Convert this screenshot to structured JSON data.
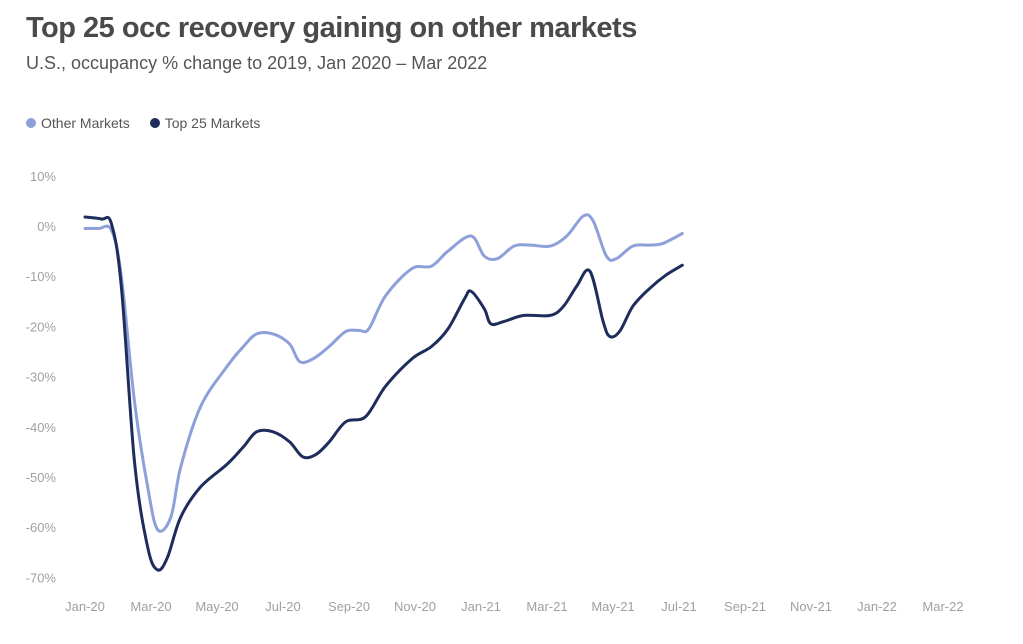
{
  "title": "Top 25 occ recovery gaining on other markets",
  "subtitle": "U.S., occupancy % change to 2019, Jan 2020 – Mar 2022",
  "chart_data": {
    "type": "line",
    "title": "Top 25 occ recovery gaining on other markets",
    "subtitle": "U.S., occupancy % change to 2019, Jan 2020 – Mar 2022",
    "xlabel": "",
    "ylabel": "",
    "ylim": [
      -70,
      10
    ],
    "yticks": [
      10,
      0,
      -10,
      -20,
      -30,
      -40,
      -50,
      -60,
      -70
    ],
    "ytick_labels": [
      "10%",
      "0%",
      "-10%",
      "-20%",
      "-30%",
      "-40%",
      "-50%",
      "-60%",
      "-70%"
    ],
    "x_tick_labels": [
      "Jan-20",
      "Mar-20",
      "May-20",
      "Jul-20",
      "Sep-20",
      "Nov-20",
      "Jan-21",
      "Mar-21",
      "May-21",
      "Jul-21",
      "Sep-21",
      "Nov-21",
      "Jan-22",
      "Mar-22"
    ],
    "grid": false,
    "legend_position": "top-left",
    "series": [
      {
        "name": "Other Markets",
        "color": "#8da0d9",
        "points": [
          [
            0,
            -0.5
          ],
          [
            0.4,
            -0.5
          ],
          [
            0.8,
            -0.8
          ],
          [
            1.1,
            -10
          ],
          [
            1.5,
            -35
          ],
          [
            1.9,
            -52
          ],
          [
            2.2,
            -60.5
          ],
          [
            2.6,
            -58
          ],
          [
            2.9,
            -48
          ],
          [
            3.5,
            -36
          ],
          [
            4.3,
            -28
          ],
          [
            4.8,
            -24
          ],
          [
            5.2,
            -21.5
          ],
          [
            5.7,
            -21.5
          ],
          [
            6.2,
            -23.5
          ],
          [
            6.5,
            -27
          ],
          [
            6.9,
            -26.5
          ],
          [
            7.4,
            -24
          ],
          [
            7.9,
            -21
          ],
          [
            8.3,
            -20.8
          ],
          [
            8.6,
            -20.5
          ],
          [
            9.1,
            -14
          ],
          [
            9.9,
            -8.5
          ],
          [
            10.5,
            -8
          ],
          [
            11.0,
            -5
          ],
          [
            11.7,
            -2
          ],
          [
            12.1,
            -6
          ],
          [
            12.5,
            -6.5
          ],
          [
            13.0,
            -4
          ],
          [
            13.5,
            -3.8
          ],
          [
            14.1,
            -4
          ],
          [
            14.6,
            -2
          ],
          [
            15.1,
            2
          ],
          [
            15.4,
            1
          ],
          [
            15.8,
            -6
          ],
          [
            16.1,
            -6.5
          ],
          [
            16.6,
            -4
          ],
          [
            17.1,
            -3.8
          ],
          [
            17.5,
            -3.5
          ],
          [
            18.1,
            -1.5
          ]
        ]
      },
      {
        "name": "Top 25 Markets",
        "color": "#1e2d5c",
        "points": [
          [
            0,
            1.8
          ],
          [
            0.5,
            1.4
          ],
          [
            0.8,
            0.5
          ],
          [
            1.1,
            -12
          ],
          [
            1.5,
            -47
          ],
          [
            1.9,
            -64
          ],
          [
            2.2,
            -68.5
          ],
          [
            2.5,
            -66
          ],
          [
            2.9,
            -58
          ],
          [
            3.5,
            -52
          ],
          [
            4.3,
            -47.5
          ],
          [
            4.8,
            -44
          ],
          [
            5.2,
            -41
          ],
          [
            5.7,
            -41
          ],
          [
            6.2,
            -43
          ],
          [
            6.6,
            -46
          ],
          [
            7.0,
            -45.5
          ],
          [
            7.4,
            -43
          ],
          [
            7.9,
            -39
          ],
          [
            8.5,
            -38
          ],
          [
            9.1,
            -32
          ],
          [
            9.9,
            -26.5
          ],
          [
            10.5,
            -24
          ],
          [
            11.0,
            -20.5
          ],
          [
            11.5,
            -14.5
          ],
          [
            11.7,
            -13
          ],
          [
            12.1,
            -16.5
          ],
          [
            12.3,
            -19.5
          ],
          [
            12.7,
            -19
          ],
          [
            13.3,
            -17.8
          ],
          [
            14.1,
            -17.8
          ],
          [
            14.5,
            -16
          ],
          [
            14.9,
            -12
          ],
          [
            15.3,
            -9
          ],
          [
            15.7,
            -19
          ],
          [
            15.9,
            -22
          ],
          [
            16.2,
            -21
          ],
          [
            16.6,
            -16
          ],
          [
            17.1,
            -12.5
          ],
          [
            17.6,
            -9.8
          ],
          [
            18.1,
            -7.8
          ]
        ]
      }
    ]
  }
}
